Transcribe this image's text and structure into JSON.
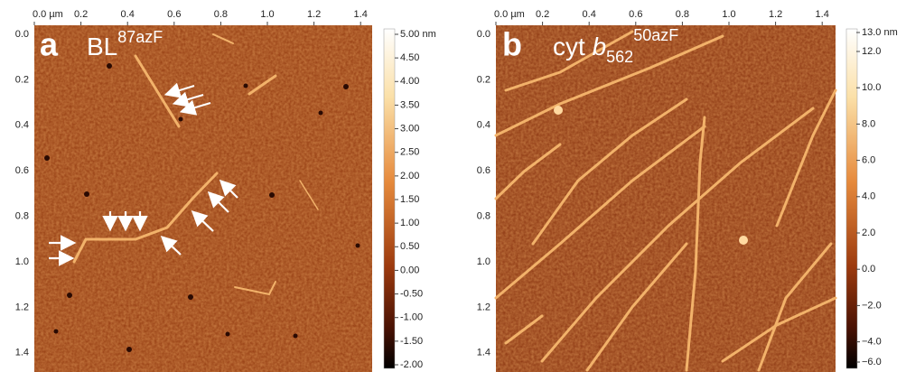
{
  "panels": [
    {
      "label": "a",
      "title": {
        "base": "BL",
        "sup": "87azF"
      },
      "x_ticks": [
        "0.0 µm",
        "0.2",
        "0.4",
        "0.6",
        "0.8",
        "1.0",
        "1.2",
        "1.4"
      ],
      "y_ticks": [
        "0.0",
        "0.2",
        "0.4",
        "0.6",
        "0.8",
        "1.0",
        "1.2",
        "1.4"
      ],
      "colorbar_ticks": [
        "5.00 nm",
        "4.50",
        "4.00",
        "3.50",
        "3.00",
        "2.50",
        "2.00",
        "1.50",
        "1.00",
        "0.50",
        "0.00",
        "-0.50",
        "-1.00",
        "-1.50",
        "-2.00"
      ]
    },
    {
      "label": "b",
      "title": {
        "base": "cyt ",
        "italic": "b",
        "sub": "562",
        "sup": "50azF"
      },
      "x_ticks": [
        "0.0 µm",
        "0.2",
        "0.4",
        "0.6",
        "0.8",
        "1.0",
        "1.2",
        "1.4"
      ],
      "y_ticks": [
        "0.0",
        "0.2",
        "0.4",
        "0.6",
        "0.8",
        "1.0",
        "1.2",
        "1.4"
      ],
      "colorbar_ticks": [
        "13.0 nm",
        "12.0",
        "10.0",
        "8.0",
        "6.0",
        "4.0",
        "2.0",
        "0.0",
        "−2.0",
        "−4.0",
        "−6.0"
      ]
    }
  ]
}
